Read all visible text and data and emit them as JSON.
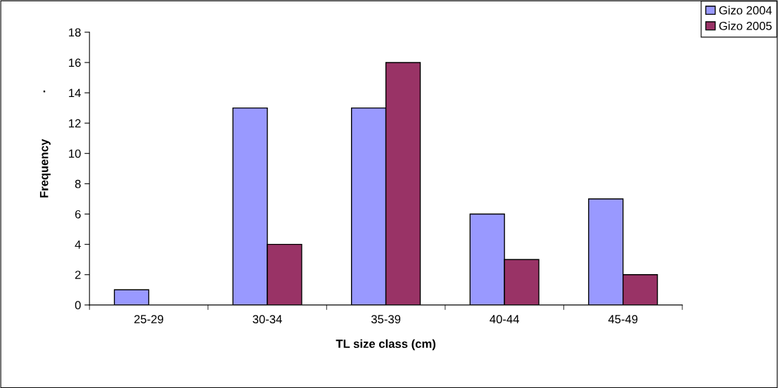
{
  "chart_data": {
    "type": "bar",
    "xlabel": "TL size class (cm)",
    "ylabel": "Frequency",
    "annotations": [
      "."
    ],
    "categories": [
      "25-29",
      "30-34",
      "35-39",
      "40-44",
      "45-49"
    ],
    "series": [
      {
        "name": "Gizo 2004",
        "color": "#9999ff",
        "values": [
          1,
          13,
          13,
          6,
          7
        ]
      },
      {
        "name": "Gizo 2005",
        "color": "#993366",
        "values": [
          null,
          4,
          16,
          3,
          2
        ]
      }
    ],
    "ylim": [
      0,
      18
    ],
    "yticks": [
      0,
      2,
      4,
      6,
      8,
      10,
      12,
      14,
      16,
      18
    ],
    "grid": false,
    "legend": "top right"
  }
}
